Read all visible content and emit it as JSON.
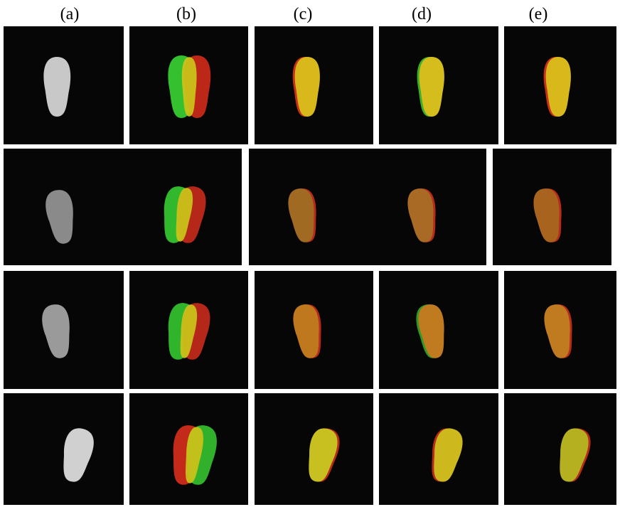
{
  "column_labels": [
    "(a)",
    "(b)",
    "(c)",
    "(d)",
    "(e)"
  ]
}
